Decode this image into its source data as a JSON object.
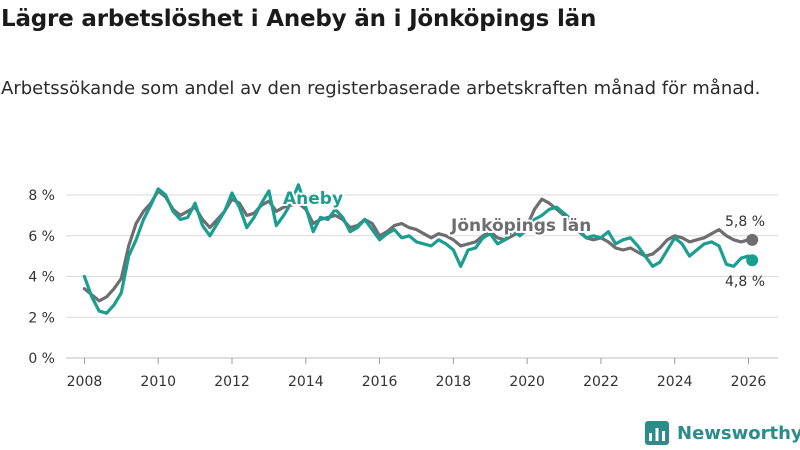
{
  "header": {
    "title": "Lägre arbetslöshet i Aneby än i Jönköpings län",
    "subtitle": "Arbetssökande som andel av den registerbaserade arbetskraften månad för månad."
  },
  "brand": {
    "name": "Newsworthy"
  },
  "colors": {
    "aneby": "#1a9e8f",
    "lan": "#6e6e70",
    "grid": "#d9d9d9",
    "brand": "#2c8c8c"
  },
  "chart_data": {
    "type": "line",
    "title": "Lägre arbetslöshet i Aneby än i Jönköpings län",
    "xlabel": "",
    "ylabel": "",
    "xlim": [
      2007.5,
      2026.8
    ],
    "ylim": [
      0,
      8
    ],
    "x_ticks": [
      2008,
      2010,
      2012,
      2014,
      2016,
      2018,
      2020,
      2022,
      2024,
      2026
    ],
    "x_tick_labels": [
      "2008",
      "2010",
      "2012",
      "2014",
      "2016",
      "2018",
      "2020",
      "2022",
      "2024",
      "2026"
    ],
    "y_ticks": [
      0,
      2,
      4,
      6,
      8
    ],
    "y_tick_labels": [
      "0 %",
      "2 %",
      "4 %",
      "6 %",
      "8 %"
    ],
    "series": [
      {
        "name": "Aneby",
        "label": "Aneby",
        "end_label": "4,8 %",
        "x": [
          2008.0,
          2008.2,
          2008.4,
          2008.6,
          2008.8,
          2009.0,
          2009.2,
          2009.4,
          2009.6,
          2009.8,
          2010.0,
          2010.2,
          2010.4,
          2010.6,
          2010.8,
          2011.0,
          2011.2,
          2011.4,
          2011.6,
          2011.8,
          2012.0,
          2012.2,
          2012.4,
          2012.6,
          2012.8,
          2013.0,
          2013.2,
          2013.4,
          2013.6,
          2013.8,
          2014.0,
          2014.2,
          2014.4,
          2014.6,
          2014.8,
          2015.0,
          2015.2,
          2015.4,
          2015.6,
          2015.8,
          2016.0,
          2016.2,
          2016.4,
          2016.6,
          2016.8,
          2017.0,
          2017.2,
          2017.4,
          2017.6,
          2017.8,
          2018.0,
          2018.2,
          2018.4,
          2018.6,
          2018.8,
          2019.0,
          2019.2,
          2019.4,
          2019.6,
          2019.8,
          2020.0,
          2020.2,
          2020.4,
          2020.6,
          2020.8,
          2021.0,
          2021.2,
          2021.4,
          2021.6,
          2021.8,
          2022.0,
          2022.2,
          2022.4,
          2022.6,
          2022.8,
          2023.0,
          2023.2,
          2023.4,
          2023.6,
          2023.8,
          2024.0,
          2024.2,
          2024.4,
          2024.6,
          2024.8,
          2025.0,
          2025.2,
          2025.4,
          2025.6,
          2025.8,
          2026.0,
          2026.1
        ],
        "values": [
          4.0,
          3.0,
          2.3,
          2.2,
          2.6,
          3.2,
          5.0,
          5.8,
          6.8,
          7.5,
          8.3,
          8.0,
          7.2,
          6.8,
          6.9,
          7.6,
          6.5,
          6.0,
          6.6,
          7.2,
          8.1,
          7.4,
          6.4,
          6.9,
          7.6,
          8.2,
          6.5,
          7.0,
          7.6,
          8.5,
          7.4,
          6.2,
          6.9,
          6.8,
          7.3,
          6.9,
          6.2,
          6.4,
          6.8,
          6.3,
          5.8,
          6.1,
          6.3,
          5.9,
          6.0,
          5.7,
          5.6,
          5.5,
          5.8,
          5.6,
          5.3,
          4.5,
          5.3,
          5.4,
          5.9,
          6.1,
          5.6,
          5.8,
          6.3,
          6.0,
          6.3,
          6.8,
          7.0,
          7.3,
          7.4,
          7.1,
          6.8,
          6.3,
          5.9,
          6.0,
          5.9,
          6.2,
          5.6,
          5.8,
          5.9,
          5.5,
          5.0,
          4.5,
          4.7,
          5.3,
          5.9,
          5.6,
          5.0,
          5.3,
          5.6,
          5.7,
          5.5,
          4.6,
          4.5,
          4.9,
          5.0,
          4.8
        ]
      },
      {
        "name": "Jönköpings län",
        "label": "Jönköpings län",
        "end_label": "5,8 %",
        "x": [
          2008.0,
          2008.2,
          2008.4,
          2008.6,
          2008.8,
          2009.0,
          2009.2,
          2009.4,
          2009.6,
          2009.8,
          2010.0,
          2010.2,
          2010.4,
          2010.6,
          2010.8,
          2011.0,
          2011.2,
          2011.4,
          2011.6,
          2011.8,
          2012.0,
          2012.2,
          2012.4,
          2012.6,
          2012.8,
          2013.0,
          2013.2,
          2013.4,
          2013.6,
          2013.8,
          2014.0,
          2014.2,
          2014.4,
          2014.6,
          2014.8,
          2015.0,
          2015.2,
          2015.4,
          2015.6,
          2015.8,
          2016.0,
          2016.2,
          2016.4,
          2016.6,
          2016.8,
          2017.0,
          2017.2,
          2017.4,
          2017.6,
          2017.8,
          2018.0,
          2018.2,
          2018.4,
          2018.6,
          2018.8,
          2019.0,
          2019.2,
          2019.4,
          2019.6,
          2019.8,
          2020.0,
          2020.2,
          2020.4,
          2020.6,
          2020.8,
          2021.0,
          2021.2,
          2021.4,
          2021.6,
          2021.8,
          2022.0,
          2022.2,
          2022.4,
          2022.6,
          2022.8,
          2023.0,
          2023.2,
          2023.4,
          2023.6,
          2023.8,
          2024.0,
          2024.2,
          2024.4,
          2024.6,
          2024.8,
          2025.0,
          2025.2,
          2025.4,
          2025.6,
          2025.8,
          2026.0,
          2026.1
        ],
        "values": [
          3.4,
          3.1,
          2.8,
          3.0,
          3.4,
          3.9,
          5.5,
          6.6,
          7.2,
          7.6,
          8.2,
          7.9,
          7.3,
          7.0,
          7.2,
          7.4,
          6.8,
          6.4,
          6.8,
          7.2,
          7.8,
          7.6,
          7.0,
          7.1,
          7.5,
          7.7,
          7.2,
          7.4,
          7.5,
          7.6,
          7.3,
          6.6,
          6.8,
          6.9,
          7.0,
          6.8,
          6.4,
          6.5,
          6.8,
          6.6,
          6.0,
          6.2,
          6.5,
          6.6,
          6.4,
          6.3,
          6.1,
          5.9,
          6.1,
          6.0,
          5.8,
          5.5,
          5.6,
          5.7,
          6.0,
          6.2,
          5.9,
          5.8,
          6.0,
          6.2,
          6.5,
          7.3,
          7.8,
          7.6,
          7.3,
          7.0,
          6.6,
          6.2,
          5.9,
          5.8,
          5.9,
          5.7,
          5.4,
          5.3,
          5.4,
          5.2,
          5.0,
          5.1,
          5.4,
          5.8,
          6.0,
          5.9,
          5.7,
          5.8,
          5.9,
          6.1,
          6.3,
          6.0,
          5.8,
          5.7,
          5.8,
          5.8
        ]
      }
    ]
  }
}
